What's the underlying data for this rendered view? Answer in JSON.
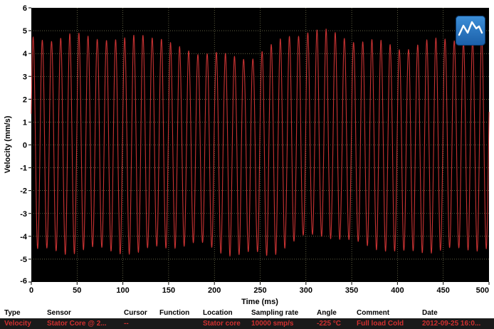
{
  "chart_data": {
    "type": "line",
    "xlabel": "Time (ms)",
    "ylabel": "Velocity (mm/s)",
    "xlim": [
      0,
      500
    ],
    "ylim": [
      -6,
      6
    ],
    "xticks": [
      "0",
      "50",
      "100",
      "150",
      "200",
      "250",
      "300",
      "350",
      "400",
      "450",
      "500"
    ],
    "yticks": [
      "6",
      "5",
      "4",
      "3",
      "2",
      "1",
      "0",
      "-1",
      "-2",
      "-3",
      "-4",
      "-5",
      "-6"
    ],
    "grid": true,
    "series": [
      {
        "line_color": "#c83232",
        "frequency_hz": 100,
        "values": [
          {
            "x": 0,
            "max": 4.6,
            "min": -4.6
          },
          {
            "x": 20,
            "max": 4.7,
            "min": -4.6
          },
          {
            "x": 40,
            "max": 4.8,
            "min": -4.7
          },
          {
            "x": 60,
            "max": 4.7,
            "min": -4.6
          },
          {
            "x": 80,
            "max": 4.7,
            "min": -4.6
          },
          {
            "x": 100,
            "max": 4.6,
            "min": -4.6
          },
          {
            "x": 120,
            "max": 4.8,
            "min": -4.8
          },
          {
            "x": 140,
            "max": 4.7,
            "min": -4.5
          },
          {
            "x": 160,
            "max": 4.3,
            "min": -4.3
          },
          {
            "x": 180,
            "max": 4.0,
            "min": -4.4
          },
          {
            "x": 200,
            "max": 4.0,
            "min": -4.6
          },
          {
            "x": 220,
            "max": 3.9,
            "min": -4.7
          },
          {
            "x": 240,
            "max": 3.8,
            "min": -4.8
          },
          {
            "x": 260,
            "max": 4.2,
            "min": -4.9
          },
          {
            "x": 280,
            "max": 4.8,
            "min": -4.3
          },
          {
            "x": 300,
            "max": 5.0,
            "min": -4.0
          },
          {
            "x": 320,
            "max": 4.9,
            "min": -4.0
          },
          {
            "x": 340,
            "max": 4.8,
            "min": -4.1
          },
          {
            "x": 360,
            "max": 4.6,
            "min": -4.3
          },
          {
            "x": 380,
            "max": 4.4,
            "min": -4.6
          },
          {
            "x": 400,
            "max": 4.3,
            "min": -4.7
          },
          {
            "x": 420,
            "max": 4.4,
            "min": -4.6
          },
          {
            "x": 440,
            "max": 4.5,
            "min": -4.7
          },
          {
            "x": 460,
            "max": 4.7,
            "min": -4.6
          },
          {
            "x": 480,
            "max": 4.6,
            "min": -4.5
          },
          {
            "x": 500,
            "max": 4.8,
            "min": -4.5
          }
        ]
      }
    ]
  },
  "colors": {
    "plot_background": "#000000",
    "grid": "#9a9a6a",
    "signal": "#c83232",
    "value_text": "#d03030"
  },
  "icon": "line-chart-icon",
  "info_table": {
    "headers": [
      "Type",
      "Sensor",
      "Cursor",
      "Function",
      "Location",
      "Sampling rate",
      "Angle",
      "Comment",
      "Date"
    ],
    "values": [
      "Velocity",
      "Stator Core @ 2...",
      "--",
      "",
      "Stator core",
      "10000 smp/s",
      "-225 °C",
      "Full load Cold",
      "2012-09-25 16:0..."
    ]
  }
}
